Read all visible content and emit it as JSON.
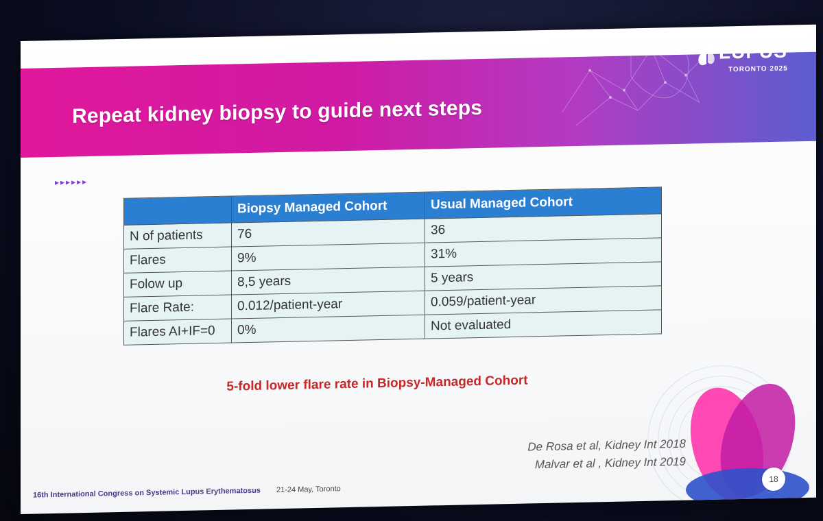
{
  "slide": {
    "title": "Repeat kidney biopsy to guide next steps",
    "logo_word": "LUPUS",
    "logo_sub": "TORONTO 2025",
    "arrows": "▸▸▸▸▸▸",
    "table": {
      "headers": [
        "",
        "Biopsy Managed Cohort",
        "Usual Managed Cohort"
      ],
      "rows": [
        [
          "N of patients",
          "76",
          "36"
        ],
        [
          "Flares",
          "9%",
          "31%"
        ],
        [
          "Folow up",
          "8,5 years",
          "5 years"
        ],
        [
          "Flare Rate:",
          "0.012/patient-year",
          "0.059/patient-year"
        ],
        [
          "Flares AI+IF=0",
          "0%",
          "Not evaluated"
        ]
      ]
    },
    "highlight": "5-fold lower flare rate in Biopsy-Managed Cohort",
    "references": [
      "De Rosa et al, Kidney Int 2018",
      "Malvar et al , Kidney Int 2019"
    ],
    "footer": {
      "congress": "16th International Congress on Systemic Lupus Erythematosus",
      "date": "21-24 May, Toronto"
    },
    "page_number": "18"
  },
  "colors": {
    "header_pink": "#e0189b",
    "header_blue": "#2a7fd3",
    "row_fill": "#e6f3f4",
    "highlight_red": "#c62828"
  }
}
